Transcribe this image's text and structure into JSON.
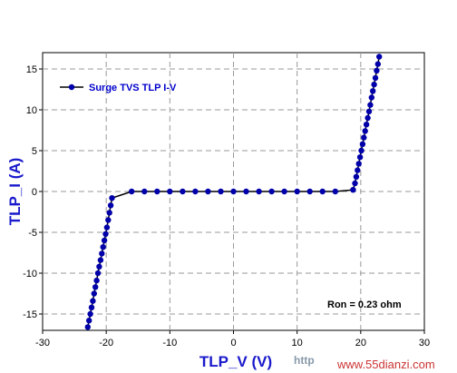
{
  "chart_data": {
    "type": "line",
    "title": "",
    "xlabel": "TLP_V (V)",
    "ylabel": "TLP_I (A)",
    "xlim": [
      -30,
      30
    ],
    "ylim": [
      -17,
      17
    ],
    "x_ticks": [
      -30,
      -20,
      -10,
      0,
      10,
      20,
      30
    ],
    "y_ticks": [
      -15,
      -10,
      -5,
      0,
      5,
      10,
      15
    ],
    "grid": true,
    "legend_position": "top-left",
    "annotation": "Ron = 0.23 ohm",
    "series": [
      {
        "name": "Surge TVS TLP I-V",
        "color": "#0000aa",
        "points": [
          [
            -22.9,
            -16.6
          ],
          [
            -22.7,
            -15.8
          ],
          [
            -22.5,
            -15.0
          ],
          [
            -22.3,
            -14.2
          ],
          [
            -22.1,
            -13.4
          ],
          [
            -21.9,
            -12.5
          ],
          [
            -21.7,
            -11.7
          ],
          [
            -21.5,
            -10.9
          ],
          [
            -21.3,
            -10.0
          ],
          [
            -21.1,
            -9.2
          ],
          [
            -20.9,
            -8.4
          ],
          [
            -20.7,
            -7.6
          ],
          [
            -20.5,
            -6.8
          ],
          [
            -20.3,
            -6.0
          ],
          [
            -20.1,
            -5.2
          ],
          [
            -19.9,
            -4.4
          ],
          [
            -19.7,
            -3.5
          ],
          [
            -19.5,
            -2.6
          ],
          [
            -19.3,
            -1.7
          ],
          [
            -19.1,
            -0.8
          ],
          [
            -16.0,
            0.0
          ],
          [
            -14.0,
            0.0
          ],
          [
            -12.0,
            0.0
          ],
          [
            -10.0,
            0.0
          ],
          [
            -8.0,
            0.0
          ],
          [
            -6.0,
            0.0
          ],
          [
            -4.0,
            0.0
          ],
          [
            -2.0,
            0.0
          ],
          [
            0.0,
            0.0
          ],
          [
            2.0,
            0.0
          ],
          [
            4.0,
            0.0
          ],
          [
            6.0,
            0.0
          ],
          [
            8.0,
            0.0
          ],
          [
            10.0,
            0.0
          ],
          [
            12.0,
            0.0
          ],
          [
            14.0,
            0.0
          ],
          [
            16.0,
            0.0
          ],
          [
            18.8,
            0.2
          ],
          [
            19.1,
            1.0
          ],
          [
            19.3,
            1.8
          ],
          [
            19.5,
            2.6
          ],
          [
            19.7,
            3.4
          ],
          [
            19.9,
            4.2
          ],
          [
            20.1,
            5.0
          ],
          [
            20.3,
            5.8
          ],
          [
            20.5,
            6.6
          ],
          [
            20.7,
            7.4
          ],
          [
            20.9,
            8.2
          ],
          [
            21.1,
            9.0
          ],
          [
            21.3,
            9.8
          ],
          [
            21.5,
            10.6
          ],
          [
            21.7,
            11.5
          ],
          [
            21.9,
            12.3
          ],
          [
            22.1,
            13.1
          ],
          [
            22.3,
            13.9
          ],
          [
            22.5,
            14.8
          ],
          [
            22.7,
            15.6
          ],
          [
            22.9,
            16.5
          ]
        ]
      }
    ]
  },
  "watermark": {
    "faint": "http",
    "site": "www.55dianzi.com"
  }
}
